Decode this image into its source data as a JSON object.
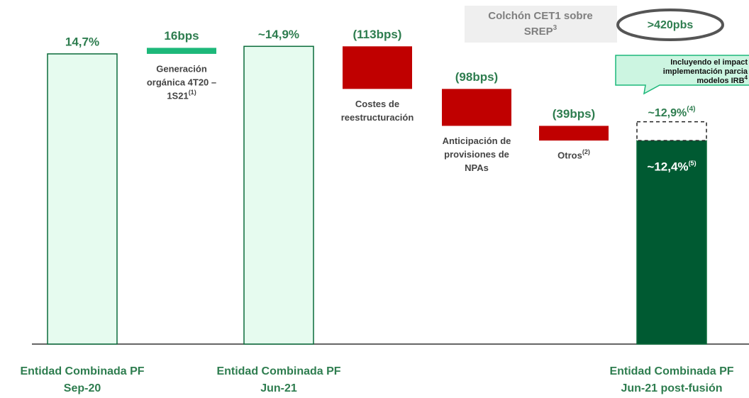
{
  "chart_data": {
    "type": "waterfall",
    "kinds": [
      "total",
      "delta",
      "total",
      "delta",
      "delta",
      "delta",
      "total"
    ],
    "values": [
      14.7,
      0.16,
      14.9,
      -1.13,
      -0.98,
      -0.39,
      12.4
    ],
    "value_labels": [
      "14,7%",
      "16bps",
      "~14,9%",
      "(113bps)",
      "(98bps)",
      "(39bps)",
      "~12,4%"
    ],
    "value_label_notes": [
      null,
      null,
      null,
      null,
      null,
      null,
      "(5)"
    ],
    "categories": [
      [
        "Entidad Combinada PF",
        "Sep-20"
      ],
      [
        "Generación",
        "orgánica 4T20 –",
        "1S21"
      ],
      [
        "Entidad Combinada PF",
        "Jun-21"
      ],
      [
        "Costes de",
        "reestructuración"
      ],
      [
        "Anticipación de",
        "provisiones de",
        "NPAs"
      ],
      [
        "Otros"
      ],
      [
        "Entidad Combinada PF",
        "Jun-21 post-fusión"
      ]
    ],
    "category_notes": [
      null,
      "(1)",
      null,
      null,
      null,
      "(2)",
      null
    ],
    "colors": {
      "total": "#e6fbef",
      "total_edge": "#0a6b3a",
      "increase": "#1db87a",
      "decrease": "#c00000",
      "final": "#005a32"
    },
    "ylim": [
      7,
      15
    ],
    "ghost": {
      "value": 12.9,
      "label": "~12,9%",
      "note": "(4)"
    },
    "callout": {
      "lines": [
        "Incluyendo el impact",
        "implementación parcia",
        "modelos IRB"
      ],
      "note": "4"
    },
    "buffer": {
      "lines": [
        "Colchón CET1 sobre",
        "SREP"
      ],
      "note": "3",
      "value": ">420pbs"
    }
  }
}
